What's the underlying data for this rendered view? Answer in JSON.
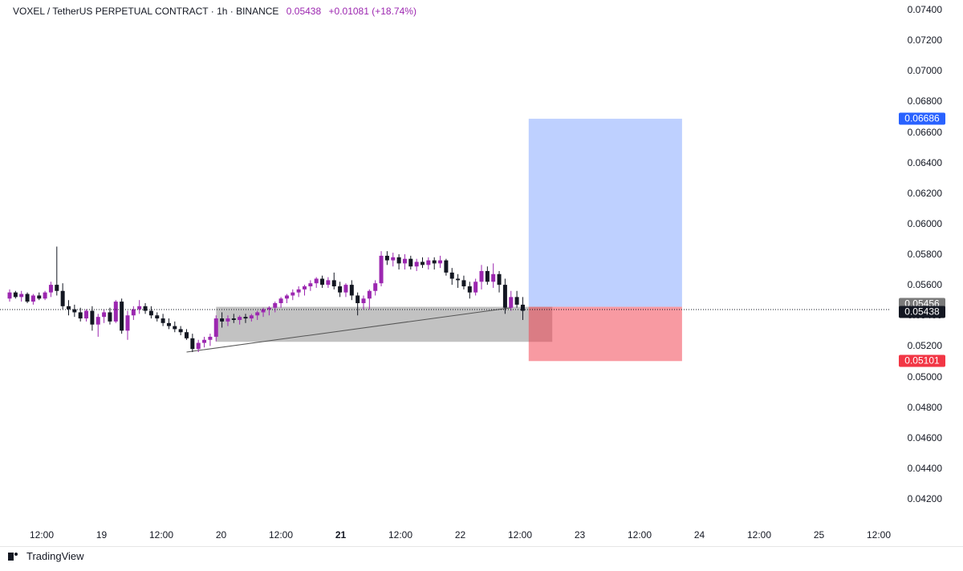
{
  "header": {
    "symbol_text": "VOXEL / TetherUS PERPETUAL CONTRACT · 1h · BINANCE",
    "last_price": "0.05438",
    "change": "+0.01081 (+18.74%)",
    "change_color": "#9c27b0"
  },
  "price_axis": {
    "ticks": [
      "0.07400",
      "0.07200",
      "0.07000",
      "0.06800",
      "0.06600",
      "0.06400",
      "0.06200",
      "0.06000",
      "0.05800",
      "0.05600",
      "0.05400",
      "0.05200",
      "0.05000",
      "0.04800",
      "0.04600",
      "0.04400",
      "0.04200"
    ],
    "labels": [
      {
        "text": "0.06686",
        "value": 0.06686,
        "bg": "#2962ff"
      },
      {
        "text": "0.05456",
        "value": 0.05456,
        "bg": "#7a7a7a"
      },
      {
        "text": "0.05438",
        "value": 0.05438,
        "bg": "#131722"
      },
      {
        "text": "0.05101",
        "value": 0.05101,
        "bg": "#f23645"
      }
    ]
  },
  "time_axis": {
    "ticks": [
      {
        "text": "12:00",
        "bold": false
      },
      {
        "text": "19",
        "bold": false
      },
      {
        "text": "12:00",
        "bold": false
      },
      {
        "text": "20",
        "bold": false
      },
      {
        "text": "12:00",
        "bold": false
      },
      {
        "text": "21",
        "bold": true
      },
      {
        "text": "12:00",
        "bold": false
      },
      {
        "text": "22",
        "bold": false
      },
      {
        "text": "12:00",
        "bold": false
      },
      {
        "text": "23",
        "bold": false
      },
      {
        "text": "12:00",
        "bold": false
      },
      {
        "text": "24",
        "bold": false
      },
      {
        "text": "12:00",
        "bold": false
      },
      {
        "text": "25",
        "bold": false
      },
      {
        "text": "12:00",
        "bold": false
      }
    ]
  },
  "chart_data": {
    "type": "candlestick",
    "interval": "1h",
    "last_price": 0.05438,
    "up_color": "#9c27b0",
    "down_color": "#131722",
    "ohlc": [
      [
        0.0551,
        0.0557,
        0.0549,
        0.0555
      ],
      [
        0.0555,
        0.0556,
        0.0551,
        0.0552
      ],
      [
        0.0552,
        0.0556,
        0.0549,
        0.0554
      ],
      [
        0.0554,
        0.0555,
        0.0548,
        0.0549
      ],
      [
        0.0549,
        0.0554,
        0.0547,
        0.0553
      ],
      [
        0.0553,
        0.0555,
        0.055,
        0.0551
      ],
      [
        0.0551,
        0.0556,
        0.055,
        0.0555
      ],
      [
        0.0555,
        0.0562,
        0.0552,
        0.056
      ],
      [
        0.056,
        0.0585,
        0.0553,
        0.0556
      ],
      [
        0.0556,
        0.0561,
        0.0544,
        0.0546
      ],
      [
        0.0546,
        0.055,
        0.054,
        0.0544
      ],
      [
        0.0544,
        0.0547,
        0.0539,
        0.0542
      ],
      [
        0.0542,
        0.0545,
        0.0536,
        0.0538
      ],
      [
        0.0538,
        0.0544,
        0.0536,
        0.0543
      ],
      [
        0.0543,
        0.0546,
        0.053,
        0.0534
      ],
      [
        0.0534,
        0.0541,
        0.0526,
        0.0539
      ],
      [
        0.0539,
        0.0544,
        0.0535,
        0.0542
      ],
      [
        0.0542,
        0.0545,
        0.0534,
        0.0536
      ],
      [
        0.0536,
        0.055,
        0.0535,
        0.0549
      ],
      [
        0.0549,
        0.0551,
        0.0528,
        0.053
      ],
      [
        0.053,
        0.0543,
        0.0524,
        0.054
      ],
      [
        0.054,
        0.0546,
        0.0537,
        0.0544
      ],
      [
        0.0544,
        0.055,
        0.0541,
        0.0546
      ],
      [
        0.0546,
        0.0548,
        0.0541,
        0.0543
      ],
      [
        0.0543,
        0.0546,
        0.0538,
        0.054
      ],
      [
        0.054,
        0.0542,
        0.0536,
        0.0538
      ],
      [
        0.0538,
        0.0541,
        0.0533,
        0.0535
      ],
      [
        0.0535,
        0.0538,
        0.0531,
        0.0533
      ],
      [
        0.0533,
        0.0536,
        0.0529,
        0.0531
      ],
      [
        0.0531,
        0.0533,
        0.0527,
        0.0529
      ],
      [
        0.0529,
        0.0531,
        0.0524,
        0.0525
      ],
      [
        0.0525,
        0.0528,
        0.0516,
        0.0518
      ],
      [
        0.0518,
        0.0524,
        0.0516,
        0.0522
      ],
      [
        0.0522,
        0.0526,
        0.0519,
        0.0524
      ],
      [
        0.0524,
        0.0528,
        0.052,
        0.0526
      ],
      [
        0.0526,
        0.054,
        0.0523,
        0.0538
      ],
      [
        0.0538,
        0.0542,
        0.0532,
        0.0536
      ],
      [
        0.0536,
        0.054,
        0.0533,
        0.0538
      ],
      [
        0.0538,
        0.0541,
        0.0535,
        0.0537
      ],
      [
        0.0537,
        0.054,
        0.0534,
        0.0539
      ],
      [
        0.0539,
        0.0541,
        0.0535,
        0.0538
      ],
      [
        0.0538,
        0.0541,
        0.0536,
        0.054
      ],
      [
        0.054,
        0.0543,
        0.0537,
        0.0542
      ],
      [
        0.0542,
        0.0545,
        0.0539,
        0.0544
      ],
      [
        0.0544,
        0.0546,
        0.054,
        0.0545
      ],
      [
        0.0545,
        0.0549,
        0.0542,
        0.0548
      ],
      [
        0.0548,
        0.0552,
        0.0545,
        0.0551
      ],
      [
        0.0551,
        0.0554,
        0.0548,
        0.0553
      ],
      [
        0.0553,
        0.0557,
        0.055,
        0.0555
      ],
      [
        0.0555,
        0.0559,
        0.0552,
        0.0557
      ],
      [
        0.0557,
        0.056,
        0.0553,
        0.0559
      ],
      [
        0.0559,
        0.0563,
        0.0556,
        0.0561
      ],
      [
        0.0561,
        0.0565,
        0.0558,
        0.0564
      ],
      [
        0.0564,
        0.0566,
        0.0558,
        0.056
      ],
      [
        0.056,
        0.0565,
        0.0558,
        0.0563
      ],
      [
        0.0563,
        0.0568,
        0.0557,
        0.0559
      ],
      [
        0.0559,
        0.0562,
        0.0552,
        0.0555
      ],
      [
        0.0555,
        0.0561,
        0.0552,
        0.056
      ],
      [
        0.056,
        0.0563,
        0.055,
        0.0553
      ],
      [
        0.0553,
        0.0555,
        0.054,
        0.0548
      ],
      [
        0.0548,
        0.0553,
        0.0544,
        0.0551
      ],
      [
        0.0551,
        0.0557,
        0.0544,
        0.0556
      ],
      [
        0.0556,
        0.0563,
        0.0553,
        0.0561
      ],
      [
        0.0561,
        0.0582,
        0.0559,
        0.0579
      ],
      [
        0.0579,
        0.0582,
        0.0573,
        0.0576
      ],
      [
        0.0576,
        0.0581,
        0.0572,
        0.0578
      ],
      [
        0.0578,
        0.058,
        0.057,
        0.0574
      ],
      [
        0.0574,
        0.058,
        0.057,
        0.0577
      ],
      [
        0.0577,
        0.0579,
        0.057,
        0.0572
      ],
      [
        0.0572,
        0.0577,
        0.0569,
        0.0575
      ],
      [
        0.0575,
        0.0578,
        0.0571,
        0.0573
      ],
      [
        0.0573,
        0.0578,
        0.057,
        0.0576
      ],
      [
        0.0576,
        0.0578,
        0.057,
        0.0574
      ],
      [
        0.0574,
        0.0579,
        0.0571,
        0.0576
      ],
      [
        0.0576,
        0.0577,
        0.0566,
        0.0568
      ],
      [
        0.0568,
        0.0571,
        0.056,
        0.0564
      ],
      [
        0.0564,
        0.0567,
        0.0558,
        0.0563
      ],
      [
        0.0563,
        0.0566,
        0.0557,
        0.0559
      ],
      [
        0.0559,
        0.0562,
        0.0551,
        0.0555
      ],
      [
        0.0555,
        0.0564,
        0.0553,
        0.0562
      ],
      [
        0.0562,
        0.0573,
        0.0557,
        0.0569
      ],
      [
        0.0569,
        0.0572,
        0.056,
        0.0562
      ],
      [
        0.0562,
        0.0574,
        0.0558,
        0.0567
      ],
      [
        0.0567,
        0.0569,
        0.0555,
        0.056
      ],
      [
        0.056,
        0.0564,
        0.0541,
        0.0545
      ],
      [
        0.0545,
        0.0556,
        0.0543,
        0.0552
      ],
      [
        0.0552,
        0.0556,
        0.0545,
        0.0547
      ],
      [
        0.0547,
        0.0552,
        0.0537,
        0.0543
      ]
    ]
  },
  "drawings": {
    "range_box": {
      "from_bar": 35,
      "to_bar": 92,
      "top": 0.05456,
      "bottom": 0.05227,
      "color": "rgba(120,120,120,0.45)"
    },
    "trend_line": {
      "from_bar": 30,
      "from_price": 0.0516,
      "to_bar": 85,
      "to_price": 0.0545,
      "color": "#555555"
    },
    "position": {
      "from_bar": 88,
      "to_bar": 114,
      "entry": 0.05456,
      "target": 0.06686,
      "stop": 0.05101,
      "target_color": "rgba(41,98,255,0.30)",
      "stop_color": "rgba(242,54,69,0.50)"
    }
  },
  "footer": {
    "brand": "TradingView"
  }
}
